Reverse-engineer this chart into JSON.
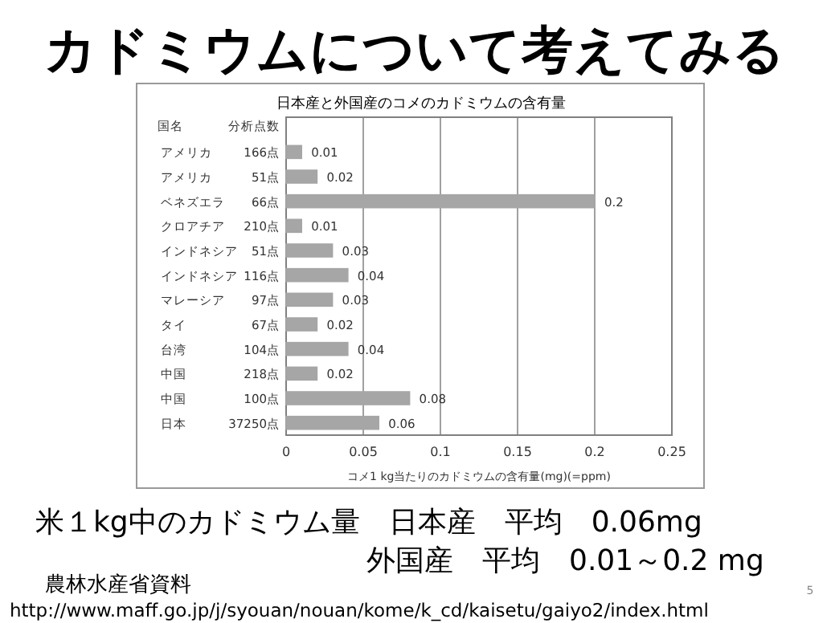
{
  "chart_data": {
    "type": "bar",
    "orientation": "horizontal",
    "title": "カドミウムについて考えてみる",
    "subtitle": "日本産と外国産のコメのカドミウムの含有量",
    "xlabel": "コメ1 kg当たりのカドミウムの含有量(mg)(=ppm)",
    "categories": [
      "アメリカ",
      "アメリカ",
      "ベネズエラ",
      "クロアチア",
      "インドネシア",
      "インドネシア",
      "マレーシア",
      "タイ",
      "台湾",
      "中国",
      "中国",
      "日本"
    ],
    "y2_categories": [
      "166点",
      "51点",
      "66点",
      "210点",
      "51点",
      "116点",
      "97点",
      "67点",
      "104点",
      "218点",
      "100点",
      "37250点"
    ],
    "values": [
      0.01,
      0.02,
      0.2,
      0.01,
      0.03,
      0.04,
      0.03,
      0.02,
      0.04,
      0.02,
      0.08,
      0.06
    ],
    "color": "#a6a6a6",
    "data_labels": true,
    "xlim": [
      0,
      0.25
    ],
    "xticks": [
      0,
      0.05,
      0.1,
      0.15,
      0.2,
      0.25
    ],
    "grid": "x",
    "annotations": [
      "国名",
      "分析点数",
      "米１kg中のカドミウム量　日本産　平均　0.06mg",
      "外国産　平均　0.01～0.2 mg",
      "農林水産省資料",
      "http://www.maff.go.jp/j/syouan/nouan/kome/k_cd/kaisetu/gaiyo2/index.html",
      "5"
    ]
  }
}
